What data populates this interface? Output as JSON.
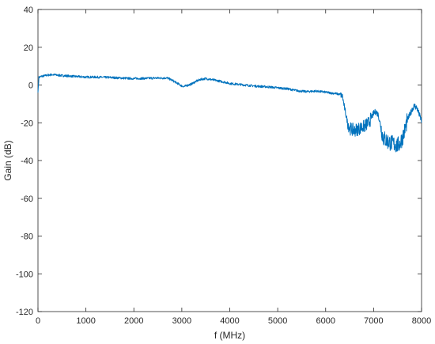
{
  "chart_data": {
    "type": "line",
    "xlabel": "f (MHz)",
    "ylabel": "Gain (dB)",
    "xlim": [
      0,
      8000
    ],
    "ylim": [
      -120,
      40
    ],
    "xticks": [
      0,
      1000,
      2000,
      3000,
      4000,
      5000,
      6000,
      7000,
      8000
    ],
    "yticks": [
      40,
      20,
      0,
      -20,
      -40,
      -60,
      -80,
      -100,
      -120
    ],
    "grid": false,
    "series": [
      {
        "color": "#0072BD",
        "x": [
          0,
          20,
          60,
          120,
          200,
          300,
          500,
          800,
          1000,
          1200,
          1500,
          1800,
          2000,
          2200,
          2500,
          2700,
          2800,
          2900,
          3000,
          3050,
          3100,
          3200,
          3300,
          3400,
          3500,
          3700,
          3900,
          4000,
          4200,
          4500,
          4800,
          5000,
          5200,
          5400,
          5600,
          5800,
          5900,
          6000,
          6100,
          6200,
          6300,
          6350,
          6400,
          6450,
          6500,
          6600,
          6700,
          6800,
          6900,
          7000,
          7050,
          7100,
          7150,
          7200,
          7300,
          7400,
          7500,
          7550,
          7600,
          7650,
          7700,
          7800,
          7850,
          7900,
          8000
        ],
        "y": [
          -4,
          4,
          4.5,
          4.8,
          5.2,
          5.5,
          5,
          4.5,
          4.2,
          4.2,
          4,
          3.6,
          3.4,
          3.5,
          3.7,
          3.7,
          2.5,
          1,
          -0.5,
          -0.8,
          -0.3,
          0.5,
          2,
          3,
          3.4,
          2.5,
          1.5,
          0.8,
          0.3,
          -0.5,
          -1,
          -1.5,
          -2,
          -3,
          -3.5,
          -3.2,
          -3.5,
          -3.8,
          -4.2,
          -4.5,
          -5,
          -6,
          -13,
          -19,
          -23,
          -24,
          -23,
          -22,
          -20,
          -15,
          -14,
          -16,
          -22,
          -28,
          -30,
          -31,
          -32,
          -31,
          -28,
          -24,
          -19,
          -13,
          -11,
          -12,
          -19
        ]
      }
    ]
  }
}
